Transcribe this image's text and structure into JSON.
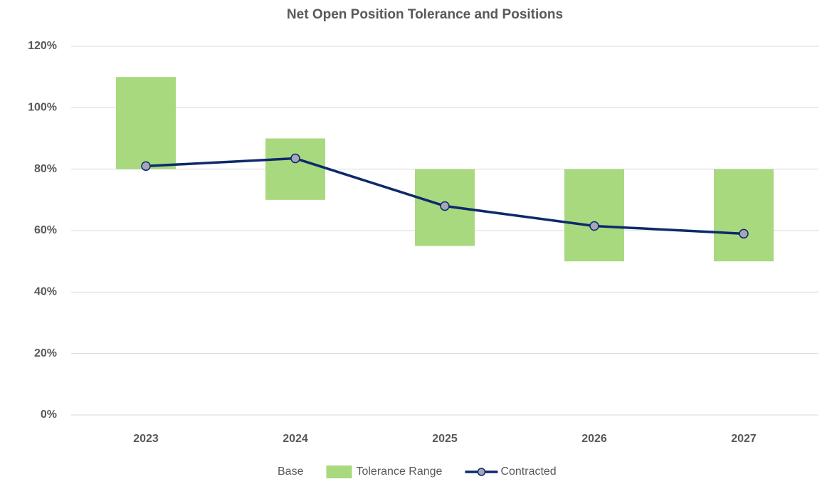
{
  "chart_data": {
    "type": "bar",
    "stacked": true,
    "title": "Net Open Position Tolerance and Positions",
    "categories": [
      "2023",
      "2024",
      "2025",
      "2026",
      "2027"
    ],
    "series": [
      {
        "name": "Base",
        "type": "bar",
        "color": "none",
        "values": [
          80,
          70,
          55,
          50,
          50
        ]
      },
      {
        "name": "Tolerance Range",
        "type": "bar",
        "color": "#a9d97e",
        "values": [
          30,
          20,
          25,
          30,
          30
        ]
      },
      {
        "name": "Contracted",
        "type": "line",
        "color": "#0d2a6b",
        "marker_color": "#a6a6b8",
        "values": [
          81,
          83.5,
          68,
          61.5,
          59
        ]
      }
    ],
    "ylim": [
      0,
      120
    ],
    "yticks": [
      {
        "value": 0,
        "label": "0%"
      },
      {
        "value": 20,
        "label": "20%"
      },
      {
        "value": 40,
        "label": "40%"
      },
      {
        "value": 60,
        "label": "60%"
      },
      {
        "value": 80,
        "label": "80%"
      },
      {
        "value": 100,
        "label": "100%"
      },
      {
        "value": 120,
        "label": "120%"
      }
    ],
    "grid": true,
    "legend": "bottom"
  }
}
